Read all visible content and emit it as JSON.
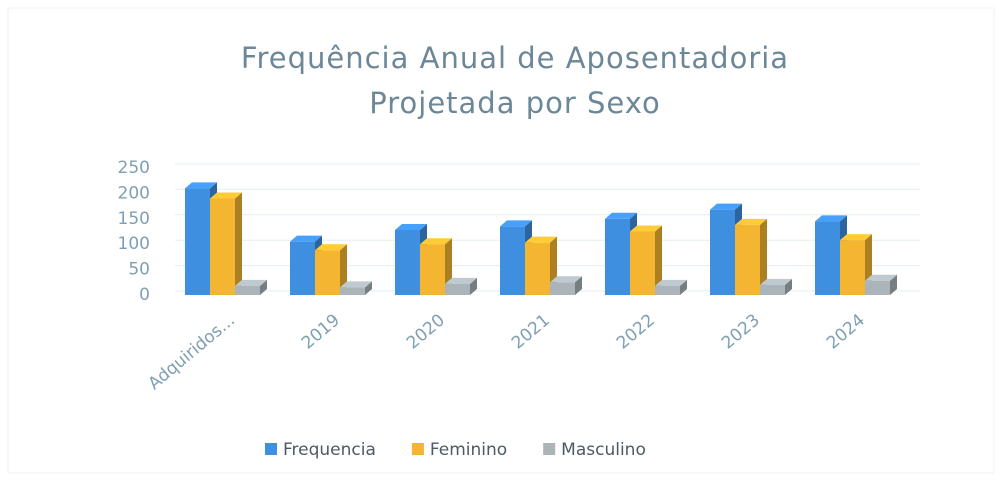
{
  "chart_data": {
    "type": "bar",
    "title": "Frequência Anual de Aposentadoria Projetada por Sexo",
    "categories": [
      "Adquiridos...",
      "2019",
      "2020",
      "2021",
      "2022",
      "2023",
      "2024"
    ],
    "series": [
      {
        "name": "Frequencia",
        "color": "#3f8fe0",
        "values": [
          210,
          105,
          128,
          135,
          150,
          168,
          145
        ]
      },
      {
        "name": "Feminino",
        "color": "#f4b631",
        "values": [
          190,
          88,
          100,
          103,
          125,
          138,
          108
        ]
      },
      {
        "name": "Masculino",
        "color": "#aab4b9",
        "values": [
          18,
          15,
          22,
          25,
          18,
          20,
          28
        ]
      }
    ],
    "ylim": [
      0,
      250
    ],
    "yticks": [
      0,
      50,
      100,
      150,
      200,
      250
    ],
    "grid": true,
    "legend": "bottom"
  }
}
